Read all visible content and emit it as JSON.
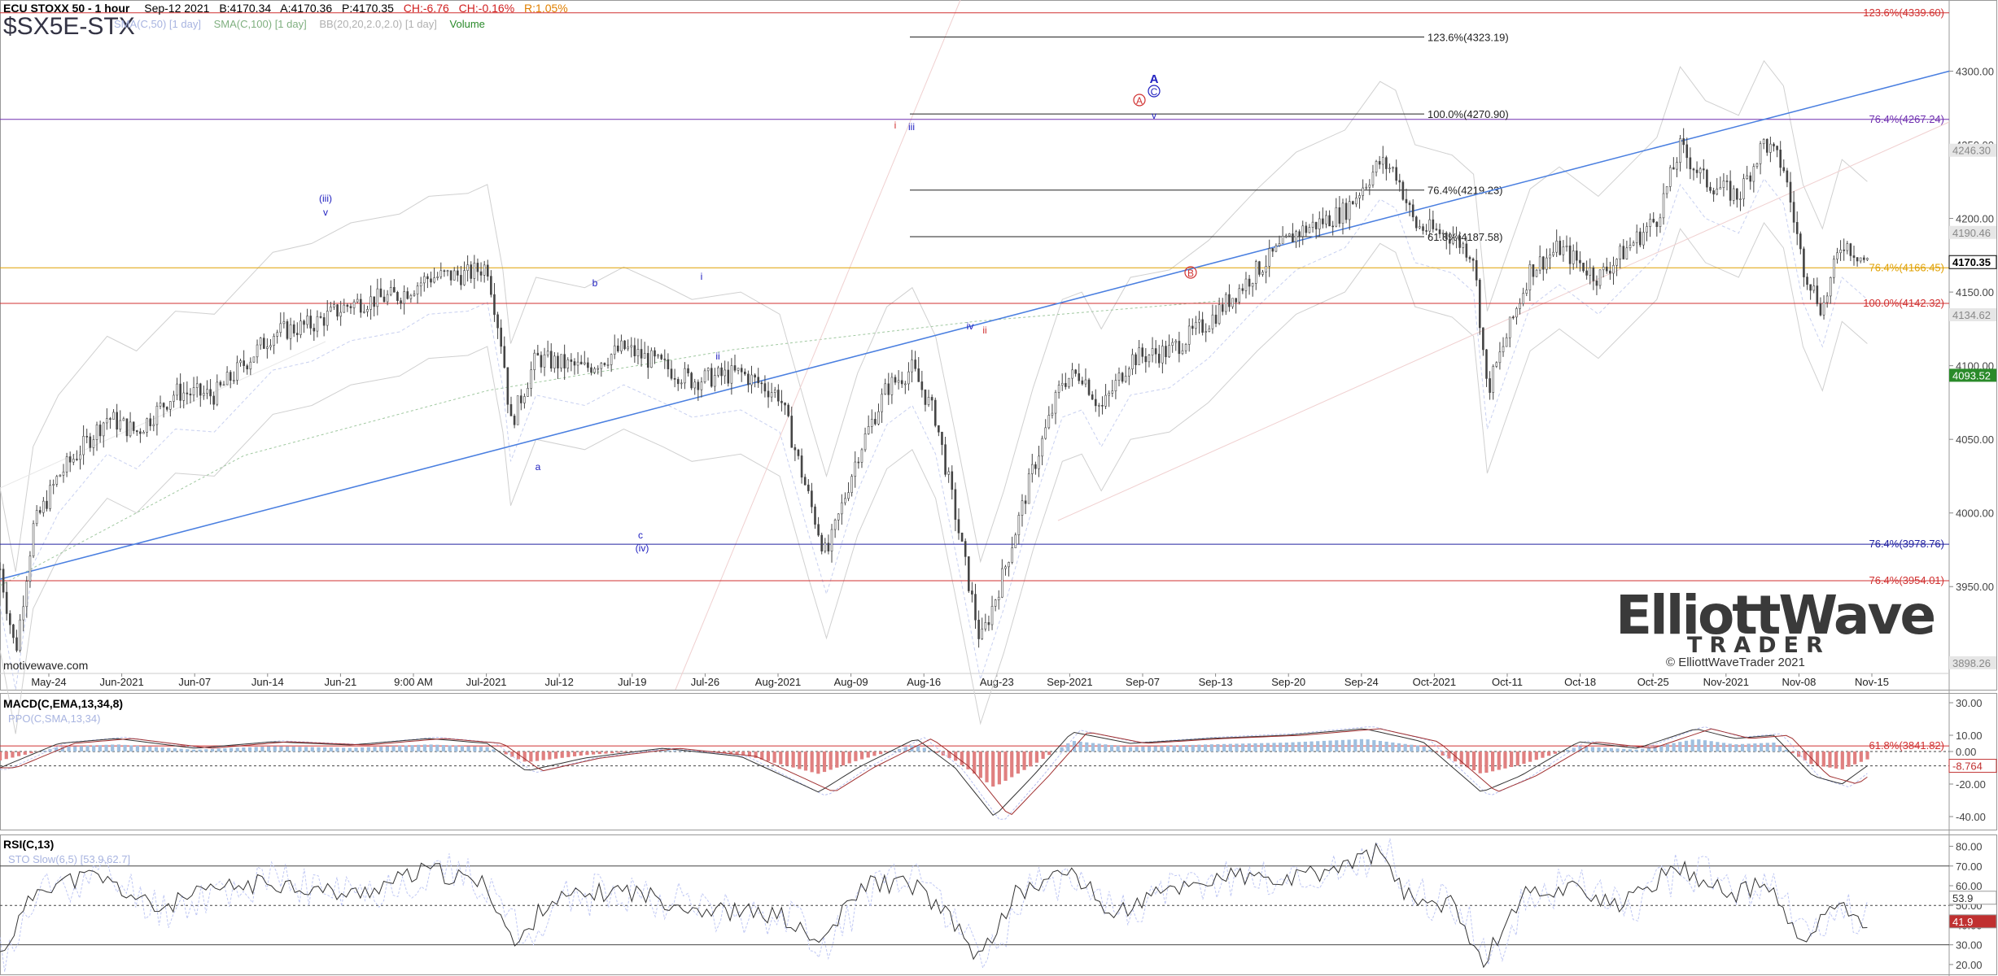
{
  "header": {
    "title": "ECU STOXX 50 - 1 hour",
    "date": "Sep-12 2021",
    "bid": "B:4170.34",
    "ask": "A:4170.36",
    "price": "P:4170.35",
    "change": "CH:-6.76",
    "change_pct": "CH:-0.16%",
    "range": "R:1.05%",
    "symbol": "$SX5E-STX",
    "indicators": [
      "SMA(C,50) [1 day]",
      "SMA(C,100) [1 day]",
      "BB(20,20,2.0,2.0) [1 day]",
      "Volume"
    ]
  },
  "credit": "motivewave.com",
  "logo": {
    "word1": "ElliottWave",
    "word2": "TRADER",
    "copyright": "© ElliottWaveTrader 2021"
  },
  "colors": {
    "up": "#444444",
    "trend": "#4a7fe0",
    "fib_red": "#d03030",
    "fib_blue": "#2020a0",
    "fib_purple": "#7030b0",
    "fib_gold": "#e0a000",
    "fib_black": "#222222",
    "macd_pos": "#9fbfdf",
    "macd_neg": "#e08080",
    "signal": "#a03030"
  },
  "chart_data": [
    {
      "type": "candlestick",
      "title": "ECU STOXX 50 - 1 hour",
      "ylim": [
        3880,
        4345
      ],
      "x_ticks": [
        "May-24",
        "Jun-2021",
        "Jun-07",
        "Jun-14",
        "Jun-21",
        "9:00 AM",
        "Jul-2021",
        "Jul-12",
        "Jul-19",
        "Jul-26",
        "Aug-2021",
        "Aug-09",
        "Aug-16",
        "Aug-23",
        "Sep-2021",
        "Sep-07",
        "Sep-13",
        "Sep-20",
        "Sep-24",
        "Oct-2021",
        "Oct-11",
        "Oct-18",
        "Oct-25",
        "Nov-2021",
        "Nov-08",
        "Nov-15"
      ],
      "y_ticks": [
        3900,
        3950,
        4000,
        4050,
        4100,
        4150,
        4200,
        4250,
        4300
      ],
      "price_tags": [
        {
          "text": "4246.30",
          "v": 4246.3,
          "color": "#888888"
        },
        {
          "text": "4190.46",
          "v": 4190.5,
          "color": "#888888"
        },
        {
          "text": "4170.35",
          "v": 4170.35,
          "color": "#000000"
        },
        {
          "text": "4134.62",
          "v": 4134.6,
          "color": "#888888"
        },
        {
          "text": "4093.52",
          "v": 4093.5,
          "color": "#2a8a2a"
        },
        {
          "text": "3898.26",
          "v": 3898.3,
          "color": "#888888"
        }
      ],
      "fib_levels_full": [
        {
          "label": "123.6%(4339.60)",
          "v": 4339.6,
          "color": "#d03030"
        },
        {
          "label": "76.4%(4267.24)",
          "v": 4267.24,
          "color": "#7030b0"
        },
        {
          "label": "76.4%(4166.45)",
          "v": 4166.45,
          "color": "#e0a000"
        },
        {
          "label": "100.0%(4142.32)",
          "v": 4142.32,
          "color": "#d03030"
        },
        {
          "label": "76.4%(3978.76)",
          "v": 3978.76,
          "color": "#2020a0"
        },
        {
          "label": "76.4%(3954.01)",
          "v": 3954.01,
          "color": "#d03030"
        },
        {
          "label": "61.8%(3841.82)",
          "v": 3841.82,
          "color": "#d03030"
        }
      ],
      "fib_levels_partial": [
        {
          "label": "123.6%(4323.19)",
          "v": 4323.19
        },
        {
          "label": "100.0%(4270.90)",
          "v": 4270.9
        },
        {
          "label": "76.4%(4219.23)",
          "v": 4219.23
        },
        {
          "label": "61.8%(4187.58)",
          "v": 4187.58
        }
      ],
      "wave_labels": [
        {
          "text": "(iii)",
          "color": "#2020c0"
        },
        {
          "text": "v",
          "color": "#2020c0"
        },
        {
          "text": "a",
          "color": "#2020c0"
        },
        {
          "text": "b",
          "color": "#2020c0"
        },
        {
          "text": "c",
          "color": "#2020c0"
        },
        {
          "text": "(iv)",
          "color": "#2020c0"
        },
        {
          "text": "i",
          "color": "#2020c0"
        },
        {
          "text": "ii",
          "color": "#2020c0"
        },
        {
          "text": "iii",
          "color": "#2020c0"
        },
        {
          "text": "i",
          "color": "#d03030"
        },
        {
          "text": "iv",
          "color": "#2020c0"
        },
        {
          "text": "ii",
          "color": "#d03030"
        },
        {
          "text": "A",
          "color": "#2020c0"
        },
        {
          "text": "A",
          "color": "#d03030"
        },
        {
          "text": "C",
          "color": "#2020c0"
        },
        {
          "text": "v",
          "color": "#2020c0"
        },
        {
          "text": "B",
          "color": "#d03030"
        }
      ],
      "price_path": [
        {
          "t": 0.0,
          "p": 3962
        },
        {
          "t": 0.008,
          "p": 3905
        },
        {
          "t": 0.017,
          "p": 3990
        },
        {
          "t": 0.03,
          "p": 4025
        },
        {
          "t": 0.055,
          "p": 4065
        },
        {
          "t": 0.07,
          "p": 4055
        },
        {
          "t": 0.09,
          "p": 4082
        },
        {
          "t": 0.11,
          "p": 4080
        },
        {
          "t": 0.14,
          "p": 4122
        },
        {
          "t": 0.16,
          "p": 4128
        },
        {
          "t": 0.18,
          "p": 4142
        },
        {
          "t": 0.205,
          "p": 4148
        },
        {
          "t": 0.22,
          "p": 4160
        },
        {
          "t": 0.24,
          "p": 4162
        },
        {
          "t": 0.25,
          "p": 4168
        },
        {
          "t": 0.258,
          "p": 4110
        },
        {
          "t": 0.262,
          "p": 4060
        },
        {
          "t": 0.275,
          "p": 4105
        },
        {
          "t": 0.3,
          "p": 4098
        },
        {
          "t": 0.32,
          "p": 4112
        },
        {
          "t": 0.34,
          "p": 4100
        },
        {
          "t": 0.355,
          "p": 4090
        },
        {
          "t": 0.38,
          "p": 4095
        },
        {
          "t": 0.4,
          "p": 4080
        },
        {
          "t": 0.415,
          "p": 4010
        },
        {
          "t": 0.424,
          "p": 3970
        },
        {
          "t": 0.44,
          "p": 4040
        },
        {
          "t": 0.455,
          "p": 4085
        },
        {
          "t": 0.468,
          "p": 4098
        },
        {
          "t": 0.48,
          "p": 4065
        },
        {
          "t": 0.49,
          "p": 4000
        },
        {
          "t": 0.503,
          "p": 3912
        },
        {
          "t": 0.515,
          "p": 3960
        },
        {
          "t": 0.53,
          "p": 4030
        },
        {
          "t": 0.545,
          "p": 4090
        },
        {
          "t": 0.555,
          "p": 4095
        },
        {
          "t": 0.565,
          "p": 4070
        },
        {
          "t": 0.58,
          "p": 4105
        },
        {
          "t": 0.6,
          "p": 4110
        },
        {
          "t": 0.62,
          "p": 4130
        },
        {
          "t": 0.645,
          "p": 4165
        },
        {
          "t": 0.665,
          "p": 4190
        },
        {
          "t": 0.69,
          "p": 4205
        },
        {
          "t": 0.708,
          "p": 4238
        },
        {
          "t": 0.716,
          "p": 4232
        },
        {
          "t": 0.726,
          "p": 4195
        },
        {
          "t": 0.745,
          "p": 4188
        },
        {
          "t": 0.756,
          "p": 4175
        },
        {
          "t": 0.763,
          "p": 4082
        },
        {
          "t": 0.773,
          "p": 4120
        },
        {
          "t": 0.785,
          "p": 4165
        },
        {
          "t": 0.8,
          "p": 4180
        },
        {
          "t": 0.82,
          "p": 4160
        },
        {
          "t": 0.835,
          "p": 4180
        },
        {
          "t": 0.85,
          "p": 4200
        },
        {
          "t": 0.862,
          "p": 4248
        },
        {
          "t": 0.875,
          "p": 4225
        },
        {
          "t": 0.892,
          "p": 4215
        },
        {
          "t": 0.905,
          "p": 4252
        },
        {
          "t": 0.915,
          "p": 4235
        },
        {
          "t": 0.925,
          "p": 4168
        },
        {
          "t": 0.935,
          "p": 4138
        },
        {
          "t": 0.945,
          "p": 4185
        },
        {
          "t": 0.958,
          "p": 4170
        }
      ]
    },
    {
      "type": "line",
      "title": "MACD(C,EMA,13,34,8)",
      "subtitle": "PPO(C,SMA,13,34)",
      "y_ticks": [
        30,
        10,
        0,
        -20,
        -40
      ],
      "ylim": [
        -48,
        36
      ],
      "last_value": "-8.764",
      "macd_path": [
        {
          "t": 0.0,
          "v": -10
        },
        {
          "t": 0.03,
          "v": 5
        },
        {
          "t": 0.06,
          "v": 8
        },
        {
          "t": 0.1,
          "v": 2
        },
        {
          "t": 0.14,
          "v": 6
        },
        {
          "t": 0.18,
          "v": 4
        },
        {
          "t": 0.22,
          "v": 8
        },
        {
          "t": 0.25,
          "v": 5
        },
        {
          "t": 0.27,
          "v": -12
        },
        {
          "t": 0.3,
          "v": -4
        },
        {
          "t": 0.34,
          "v": 2
        },
        {
          "t": 0.38,
          "v": -3
        },
        {
          "t": 0.42,
          "v": -25
        },
        {
          "t": 0.44,
          "v": -10
        },
        {
          "t": 0.47,
          "v": 8
        },
        {
          "t": 0.49,
          "v": -10
        },
        {
          "t": 0.51,
          "v": -40
        },
        {
          "t": 0.53,
          "v": -15
        },
        {
          "t": 0.55,
          "v": 12
        },
        {
          "t": 0.58,
          "v": 5
        },
        {
          "t": 0.62,
          "v": 8
        },
        {
          "t": 0.66,
          "v": 10
        },
        {
          "t": 0.7,
          "v": 14
        },
        {
          "t": 0.73,
          "v": 6
        },
        {
          "t": 0.76,
          "v": -25
        },
        {
          "t": 0.78,
          "v": -15
        },
        {
          "t": 0.81,
          "v": 6
        },
        {
          "t": 0.84,
          "v": 2
        },
        {
          "t": 0.87,
          "v": 14
        },
        {
          "t": 0.89,
          "v": 8
        },
        {
          "t": 0.91,
          "v": 10
        },
        {
          "t": 0.93,
          "v": -15
        },
        {
          "t": 0.945,
          "v": -20
        },
        {
          "t": 0.958,
          "v": -8.8
        }
      ]
    },
    {
      "type": "line",
      "title": "RSI(C,13)",
      "subtitle": "STO Slow(6,5) [53.9,62.7]",
      "y_ticks": [
        80,
        70,
        60,
        50,
        40,
        30,
        20
      ],
      "ylim": [
        15,
        86
      ],
      "last_values": [
        "53.9",
        "41.9"
      ],
      "rsi_path": [
        {
          "t": 0.0,
          "v": 25
        },
        {
          "t": 0.02,
          "v": 60
        },
        {
          "t": 0.05,
          "v": 65
        },
        {
          "t": 0.08,
          "v": 48
        },
        {
          "t": 0.11,
          "v": 58
        },
        {
          "t": 0.14,
          "v": 62
        },
        {
          "t": 0.18,
          "v": 55
        },
        {
          "t": 0.22,
          "v": 68
        },
        {
          "t": 0.25,
          "v": 60
        },
        {
          "t": 0.265,
          "v": 28
        },
        {
          "t": 0.28,
          "v": 52
        },
        {
          "t": 0.32,
          "v": 58
        },
        {
          "t": 0.36,
          "v": 48
        },
        {
          "t": 0.4,
          "v": 45
        },
        {
          "t": 0.42,
          "v": 30
        },
        {
          "t": 0.445,
          "v": 62
        },
        {
          "t": 0.47,
          "v": 60
        },
        {
          "t": 0.49,
          "v": 40
        },
        {
          "t": 0.503,
          "v": 22
        },
        {
          "t": 0.52,
          "v": 55
        },
        {
          "t": 0.55,
          "v": 68
        },
        {
          "t": 0.57,
          "v": 45
        },
        {
          "t": 0.6,
          "v": 58
        },
        {
          "t": 0.63,
          "v": 65
        },
        {
          "t": 0.66,
          "v": 62
        },
        {
          "t": 0.69,
          "v": 70
        },
        {
          "t": 0.708,
          "v": 78
        },
        {
          "t": 0.72,
          "v": 55
        },
        {
          "t": 0.745,
          "v": 50
        },
        {
          "t": 0.762,
          "v": 22
        },
        {
          "t": 0.78,
          "v": 55
        },
        {
          "t": 0.81,
          "v": 60
        },
        {
          "t": 0.83,
          "v": 48
        },
        {
          "t": 0.86,
          "v": 70
        },
        {
          "t": 0.89,
          "v": 55
        },
        {
          "t": 0.905,
          "v": 62
        },
        {
          "t": 0.925,
          "v": 30
        },
        {
          "t": 0.94,
          "v": 50
        },
        {
          "t": 0.958,
          "v": 41.9
        }
      ]
    }
  ]
}
